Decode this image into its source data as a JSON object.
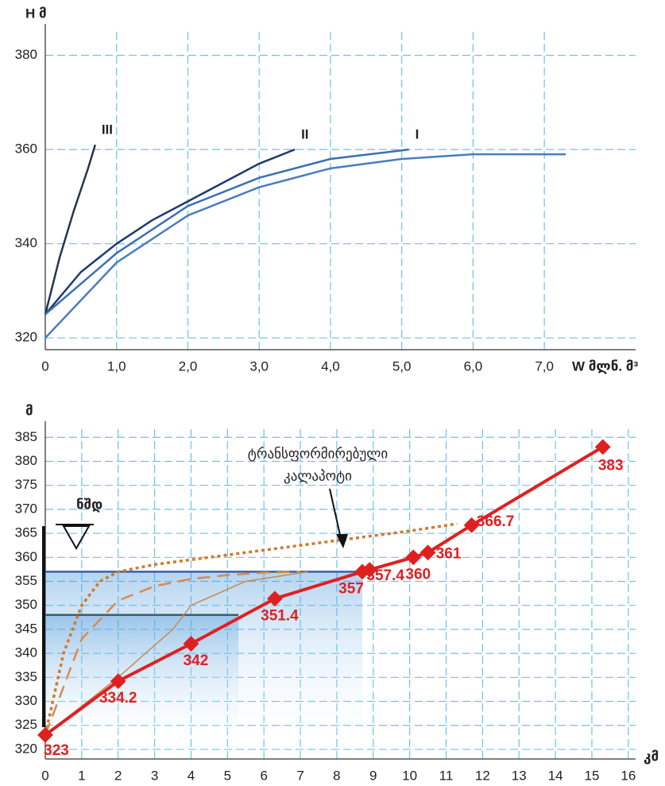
{
  "chart_data": [
    {
      "type": "line",
      "y_label": "H მ",
      "x_label": "W მლნ. მ³",
      "xlim": [
        0,
        8.28
      ],
      "ylim": [
        317.5,
        385
      ],
      "xticks": [
        0,
        {
          "value": 1,
          "label": "1,0"
        },
        {
          "value": 2,
          "label": "2,0"
        },
        {
          "value": 3,
          "label": "3,0"
        },
        {
          "value": 4,
          "label": "4,0"
        },
        {
          "value": 5,
          "label": "5,0"
        },
        {
          "value": 6,
          "label": "6,0"
        },
        {
          "value": 7,
          "label": "7,0"
        }
      ],
      "yticks": [
        320,
        340,
        360,
        380
      ],
      "grid": true,
      "series": [
        {
          "name": "III",
          "color": "#26344f",
          "style": "solid",
          "x": [
            0,
            0.2,
            0.4,
            0.6,
            0.7
          ],
          "values": [
            325,
            337,
            347,
            356,
            361
          ]
        },
        {
          "name": "II",
          "color": "#1f3a6e",
          "style": "solid",
          "x": [
            0,
            0.5,
            1,
            1.5,
            2,
            2.5,
            3,
            3.5
          ],
          "values": [
            325,
            334,
            340,
            345,
            349,
            353,
            357,
            360
          ]
        },
        {
          "name": "I",
          "color": "#3a6fb5",
          "style": "solid",
          "x": [
            0,
            1,
            2,
            3,
            4,
            5.1
          ],
          "values": [
            325,
            338,
            348,
            354,
            358,
            360
          ]
        },
        {
          "color": "#4a7cc0",
          "style": "solid",
          "x": [
            0,
            1,
            2,
            3,
            4,
            5,
            6,
            7.3
          ],
          "values": [
            320,
            336,
            346,
            352,
            356,
            358,
            359,
            359
          ]
        }
      ]
    },
    {
      "type": "line",
      "y_label": "მ",
      "x_label": "კმ",
      "annotation": [
        "ტრანსფორმირებული",
        "კალაპოტი"
      ],
      "level_label": "ნშდ",
      "xlim": [
        0,
        16.2
      ],
      "ylim": [
        318,
        386.7
      ],
      "xticks": [
        0,
        1,
        2,
        3,
        4,
        5,
        6,
        7,
        8,
        9,
        10,
        11,
        12,
        13,
        14,
        15,
        16
      ],
      "yticks": [
        320,
        325,
        330,
        335,
        340,
        345,
        350,
        355,
        360,
        365,
        370,
        375,
        380,
        385
      ],
      "grid": true,
      "series": [
        {
          "color": "#3a5fa8",
          "style": "level",
          "x": [
            0,
            8.7
          ],
          "values": [
            357,
            357
          ]
        },
        {
          "color": "#3a5f70",
          "style": "level",
          "x": [
            0,
            5.3
          ],
          "values": [
            348,
            348
          ]
        },
        {
          "color": "#d07a2a",
          "style": "dotted",
          "x": [
            0,
            0.5,
            1,
            1.5,
            2,
            3,
            4,
            6,
            8,
            10,
            11.3
          ],
          "values": [
            323,
            340,
            350,
            355,
            357,
            358.5,
            359.5,
            361.5,
            363.5,
            365.5,
            367
          ]
        },
        {
          "color": "#d98a50",
          "style": "dashed",
          "x": [
            0,
            0.5,
            1,
            2,
            3,
            4,
            5,
            6,
            7
          ],
          "values": [
            323,
            333,
            343,
            351,
            354,
            355.5,
            356.3,
            356.8,
            357
          ]
        },
        {
          "color": "#c8894e",
          "style": "thin",
          "x": [
            0,
            2,
            3.5,
            4,
            5.5,
            7.2
          ],
          "values": [
            323,
            335,
            345,
            350,
            355,
            357
          ]
        },
        {
          "color": "#c8894e",
          "style": "thin",
          "x": [
            0,
            2,
            4,
            5.5
          ],
          "values": [
            323,
            334,
            342,
            348
          ]
        },
        {
          "color": "#e02020",
          "style": "markers",
          "x": [
            0,
            2,
            4,
            6.3,
            8.7,
            8.9,
            10.1,
            10.5,
            11.7,
            15.3
          ],
          "values": [
            323,
            334.2,
            342,
            351.4,
            357,
            357.4,
            360,
            361,
            366.7,
            383
          ]
        }
      ]
    }
  ]
}
